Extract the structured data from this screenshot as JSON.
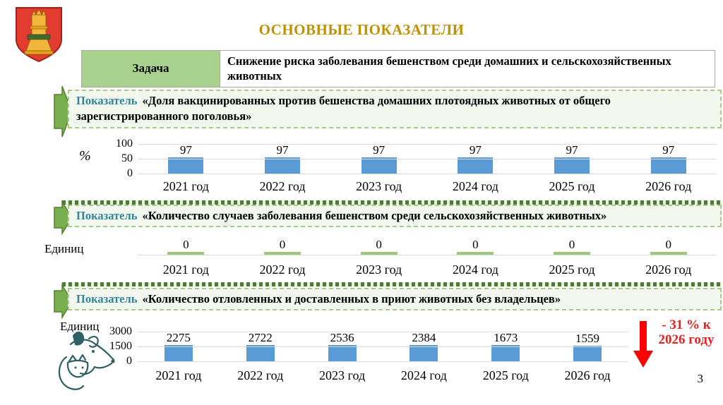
{
  "header": {
    "title": "ОСНОВНЫЕ ПОКАЗАТЕЛИ",
    "logo": "tver-region-coat-of-arms"
  },
  "task": {
    "label": "Задача",
    "text": "Снижение риска заболевания бешенством среди домашних и сельскохозяйственных животных"
  },
  "indicators": [
    {
      "label": "Показатель",
      "text": "«Доля вакцинированных против бешенства домашних плотоядных животных от общего зарегистрированного поголовья»"
    },
    {
      "label": "Показатель",
      "text": "«Количество случаев заболевания бешенством среди сельскохозяйственных животных»"
    },
    {
      "label": "Показатель",
      "text": "«Количество отловленных и доставленных в приют животных без владельцев»"
    }
  ],
  "annotation": {
    "text": "- 31 % к 2026 году",
    "icon": "red-down-arrow"
  },
  "footer": {
    "page_number": "3"
  },
  "colors": {
    "title_gold": "#BF9000",
    "bar_blue": "#5B9BD5",
    "zero_dash_green": "#9DC87E",
    "task_cell_green": "#A9D18E",
    "indicator_label_teal": "#31849B",
    "box_border_green": "#A9C98F",
    "separator_green": "#4E7B35",
    "block_arrow_green": "#79AE4E",
    "annotation_red": "#E32222",
    "gridline_gray": "#D9D9D9"
  },
  "chart_data": [
    {
      "type": "bar",
      "title": "Доля вакцинированных против бешенства домашних плотоядных животных от общего зарегистрированного поголовья",
      "unit": "%",
      "categories": [
        "2021 год",
        "2022 год",
        "2023 год",
        "2024 год",
        "2025 год",
        "2026 год"
      ],
      "values": [
        97,
        97,
        97,
        97,
        97,
        97
      ],
      "yticks": [
        100,
        50,
        0
      ],
      "ylim": [
        0,
        100
      ],
      "grid": true,
      "legend": "none",
      "bar_color": "#5B9BD5",
      "value_labels": true
    },
    {
      "type": "bar",
      "title": "Количество случаев заболевания бешенством среди сельскохозяйственных животных",
      "unit": "Единиц",
      "categories": [
        "2021 год",
        "2022 год",
        "2023 год",
        "2024 год",
        "2025 год",
        "2026 год"
      ],
      "values": [
        0,
        0,
        0,
        0,
        0,
        0
      ],
      "yticks": [],
      "ylim": [
        0,
        1
      ],
      "grid": false,
      "baseline": true,
      "zero_dash": true,
      "legend": "none",
      "bar_color": "#9DC87E",
      "value_labels": true
    },
    {
      "type": "bar",
      "title": "Количество отловленных и доставленных в приют животных без владельцев",
      "unit": "Единиц",
      "categories": [
        "2021 год",
        "2022 год",
        "2023 год",
        "2024 год",
        "2025 год",
        "2026 год"
      ],
      "values": [
        2275,
        2722,
        2536,
        2384,
        1673,
        1559
      ],
      "yticks": [
        3000,
        1500,
        0
      ],
      "ylim": [
        0,
        3000
      ],
      "grid": true,
      "legend": "none",
      "bar_color": "#5B9BD5",
      "value_labels": true
    }
  ]
}
